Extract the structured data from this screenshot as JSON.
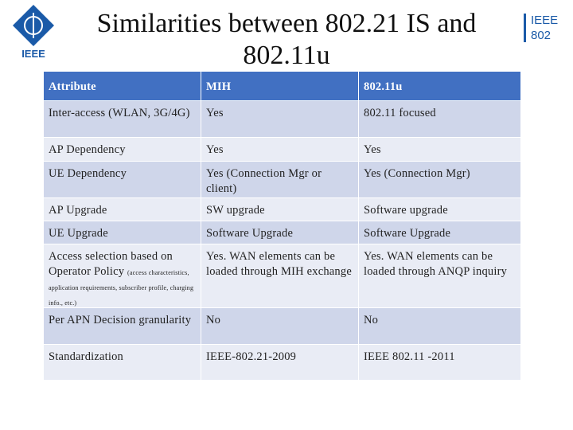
{
  "header": {
    "title_lines": [
      "Similarities between 802.21 IS and",
      "802.11u"
    ],
    "left_logo": "IEEE",
    "right_logo": [
      "IEEE",
      "802"
    ]
  },
  "table": {
    "header": [
      "Attribute",
      "MIH",
      "802.11u"
    ],
    "rows": [
      [
        "Inter-access (WLAN, 3G/4G)",
        "Yes",
        "802.11 focused"
      ],
      [
        "AP Dependency",
        "Yes",
        "Yes"
      ],
      [
        "UE Dependency",
        "Yes (Connection Mgr or client)",
        "Yes (Connection Mgr)"
      ],
      [
        "AP Upgrade",
        "SW upgrade",
        "Software upgrade"
      ],
      [
        "UE Upgrade",
        "Software Upgrade",
        "Software Upgrade"
      ],
      [
        {
          "text": "Access selection based on Operator Policy",
          "note": "(access characteristics, application requirements, subscriber profile, charging info., etc.)"
        },
        "Yes. WAN elements can be loaded through MIH exchange",
        "Yes. WAN elements can be loaded through ANQP inquiry"
      ],
      [
        "Per APN Decision granularity",
        "No",
        "No"
      ],
      [
        "Standardization",
        "IEEE-802.21-2009",
        "IEEE 802.11 -2011"
      ]
    ]
  }
}
